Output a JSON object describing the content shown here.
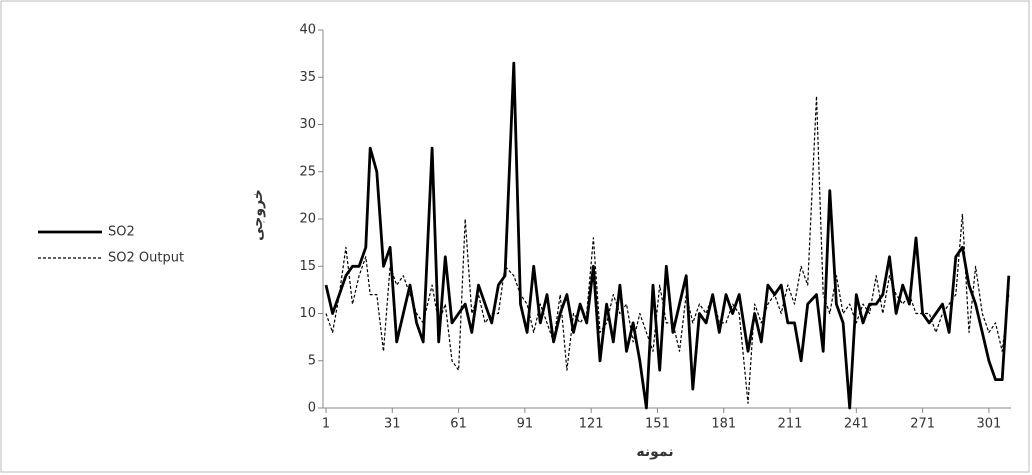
{
  "chart_data": {
    "type": "line",
    "x_label": "نمونه",
    "y_label": "خروجی",
    "x": [
      1,
      4,
      7,
      10,
      13,
      16,
      19,
      21,
      24,
      27,
      30,
      33,
      36,
      39,
      42,
      45,
      49,
      52,
      55,
      58,
      61,
      64,
      67,
      70,
      73,
      76,
      79,
      82,
      86,
      89,
      92,
      95,
      98,
      101,
      104,
      107,
      110,
      113,
      116,
      119,
      122,
      125,
      128,
      131,
      134,
      137,
      140,
      143,
      146,
      149,
      152,
      155,
      158,
      161,
      164,
      167,
      170,
      173,
      176,
      179,
      182,
      185,
      188,
      192,
      195,
      198,
      201,
      204,
      207,
      210,
      213,
      216,
      219,
      223,
      226,
      229,
      232,
      235,
      238,
      241,
      244,
      247,
      250,
      253,
      256,
      259,
      262,
      265,
      268,
      271,
      274,
      277,
      280,
      283,
      286,
      289,
      292,
      295,
      298,
      301,
      304,
      307,
      310
    ],
    "series": [
      {
        "name": "SO2",
        "color": "#000000",
        "dash": false,
        "values": [
          13,
          10,
          12,
          14,
          15,
          15,
          17,
          27.5,
          25,
          15,
          17,
          7,
          10,
          13,
          9,
          7,
          27.5,
          7,
          16,
          9,
          10,
          11,
          8,
          13,
          11,
          9,
          13,
          14,
          36.5,
          11,
          8,
          15,
          9,
          12,
          7,
          10,
          12,
          8,
          11,
          9,
          15,
          5,
          11,
          7,
          13,
          6,
          9,
          5,
          0,
          13,
          4,
          15,
          8,
          11,
          14,
          2,
          10,
          9,
          12,
          8,
          12,
          10,
          12,
          6,
          10,
          7,
          13,
          12,
          13,
          9,
          9,
          5,
          11,
          12,
          6,
          23,
          11,
          9,
          0,
          12,
          9,
          11,
          11,
          12,
          16,
          10,
          13,
          11,
          18,
          10,
          9,
          10,
          11,
          8,
          16,
          17,
          13,
          11,
          8,
          5,
          3,
          3,
          14
        ]
      },
      {
        "name": "SO2 Output",
        "color": "#000000",
        "dash": true,
        "values": [
          10,
          8,
          12,
          17,
          11,
          14,
          16,
          12,
          12,
          6,
          15,
          13,
          14,
          12,
          10,
          9,
          13,
          9,
          11,
          5,
          4,
          20,
          10,
          12,
          9,
          10,
          10,
          15,
          14,
          12,
          11,
          8,
          11,
          9,
          7,
          12,
          4,
          10,
          9,
          10,
          18,
          8,
          9,
          12,
          10,
          11,
          7,
          10,
          8,
          6,
          13,
          9,
          9,
          6,
          12,
          9,
          11,
          10,
          12,
          9,
          9,
          11,
          10,
          0.5,
          11,
          9,
          11,
          12,
          10,
          13,
          11,
          15,
          13,
          33,
          12,
          10,
          14,
          10,
          11,
          9,
          11,
          10,
          14,
          10,
          14,
          12,
          11,
          12,
          10,
          10,
          10,
          8,
          10,
          11,
          12,
          20.5,
          8,
          15,
          10,
          8,
          9,
          6,
          12
        ]
      }
    ],
    "xlim": [
      1,
      311
    ],
    "ylim": [
      0,
      40
    ],
    "xticks": [
      1,
      31,
      61,
      91,
      121,
      151,
      181,
      211,
      241,
      271,
      301
    ],
    "yticks": [
      0,
      5,
      10,
      15,
      20,
      25,
      30,
      35,
      40
    ],
    "legend": "left"
  }
}
